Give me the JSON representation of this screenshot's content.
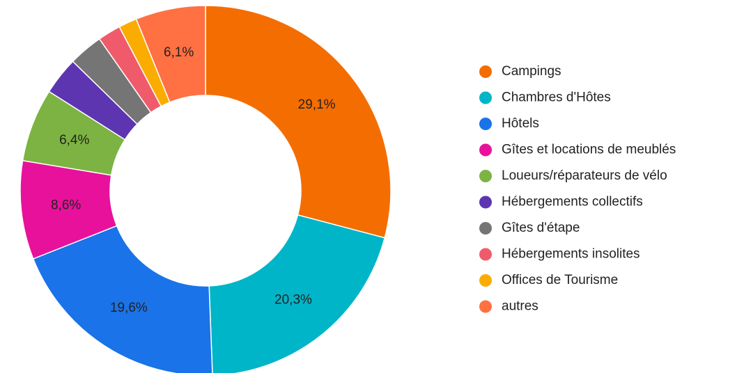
{
  "chart_data": {
    "type": "pie",
    "categories": [
      "Campings",
      "Chambres d'Hôtes",
      "Hôtels",
      "Gîtes et locations de meublés",
      "Loueurs/réparateurs de vélo",
      "Hébergements collectifs",
      "Gîtes d'étape",
      "Hébergements insolites",
      "Offices de Tourisme",
      "autres"
    ],
    "values": [
      29.1,
      20.3,
      19.6,
      8.6,
      6.4,
      3.3,
      3.0,
      2.0,
      1.6,
      6.1
    ],
    "value_labels": [
      "29,1%",
      "20,3%",
      "19,6%",
      "8,6%",
      "6,4%",
      null,
      null,
      null,
      null,
      "6,1%"
    ],
    "colors": [
      "#f46d00",
      "#00b5c8",
      "#1a73e8",
      "#e8119b",
      "#7cb342",
      "#5e35b1",
      "#757575",
      "#ef5b6b",
      "#fbac00",
      "#ff7043"
    ],
    "legend": "right"
  }
}
